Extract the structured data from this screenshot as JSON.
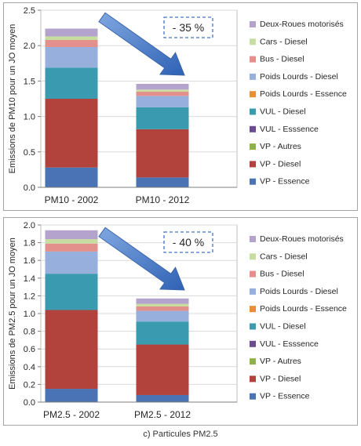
{
  "caption": "c) Particules PM2.5",
  "colors": {
    "VP - Essence": "#4a73b6",
    "VP - Diesel": "#b1423c",
    "VP - Autres": "#8fb04e",
    "VUL - Esssence": "#6c4b92",
    "VUL - Diesel": "#3a9bb0",
    "Poids Lourds - Essence": "#e88e35",
    "Poids Lourds - Diesel": "#97afdc",
    "Bus - Diesel": "#e38f8c",
    "Cars - Diesel": "#c7dc9f",
    "Deux-Roues motorisés": "#b3a3cd"
  },
  "chart_data": [
    {
      "type": "bar",
      "stacked": true,
      "ylabel": "Emissions de PM10 pour un JO moyen",
      "ylim": [
        0,
        2.5
      ],
      "yticks": [
        0,
        0.5,
        1,
        1.5,
        2,
        2.5
      ],
      "ytick_labels": [
        "0.0",
        "0.5",
        "1.0",
        "1.5",
        "2.0",
        "2.5"
      ],
      "grid": true,
      "legend_position": "right",
      "categories": [
        "PM10 - 2002",
        "PM10 - 2012"
      ],
      "annotation": "- 35 %",
      "series": [
        {
          "name": "VP - Essence",
          "values": [
            0.28,
            0.14
          ]
        },
        {
          "name": "VP - Diesel",
          "values": [
            0.97,
            0.68
          ]
        },
        {
          "name": "VP - Autres",
          "values": [
            0.0,
            0.0
          ]
        },
        {
          "name": "VUL - Esssence",
          "values": [
            0.0,
            0.0
          ]
        },
        {
          "name": "VUL - Diesel",
          "values": [
            0.44,
            0.31
          ]
        },
        {
          "name": "Poids Lourds - Essence",
          "values": [
            0.0,
            0.0
          ]
        },
        {
          "name": "Poids Lourds - Diesel",
          "values": [
            0.29,
            0.16
          ]
        },
        {
          "name": "Bus - Diesel",
          "values": [
            0.1,
            0.06
          ]
        },
        {
          "name": "Cars - Diesel",
          "values": [
            0.05,
            0.03
          ]
        },
        {
          "name": "Deux-Roues motorisés",
          "values": [
            0.11,
            0.08
          ]
        }
      ]
    },
    {
      "type": "bar",
      "stacked": true,
      "ylabel": "Emissions de PM2.5 pour un JO moyen",
      "ylim": [
        0,
        2.0
      ],
      "yticks": [
        0,
        0.2,
        0.4,
        0.6,
        0.8,
        1.0,
        1.2,
        1.4,
        1.6,
        1.8,
        2.0
      ],
      "ytick_labels": [
        "0.0",
        "0.2",
        "0.4",
        "0.6",
        "0.8",
        "1.0",
        "1.2",
        "1.4",
        "1.6",
        "1.8",
        "2.0"
      ],
      "grid": true,
      "legend_position": "right",
      "categories": [
        "PM2.5 - 2002",
        "PM2.5 - 2012"
      ],
      "annotation": "- 40 %",
      "series": [
        {
          "name": "VP - Essence",
          "values": [
            0.15,
            0.08
          ]
        },
        {
          "name": "VP - Diesel",
          "values": [
            0.89,
            0.57
          ]
        },
        {
          "name": "VP - Autres",
          "values": [
            0.0,
            0.0
          ]
        },
        {
          "name": "VUL - Esssence",
          "values": [
            0.0,
            0.0
          ]
        },
        {
          "name": "VUL - Diesel",
          "values": [
            0.41,
            0.26
          ]
        },
        {
          "name": "Poids Lourds - Essence",
          "values": [
            0.0,
            0.0
          ]
        },
        {
          "name": "Poids Lourds - Diesel",
          "values": [
            0.25,
            0.12
          ]
        },
        {
          "name": "Bus - Diesel",
          "values": [
            0.09,
            0.05
          ]
        },
        {
          "name": "Cars - Diesel",
          "values": [
            0.05,
            0.03
          ]
        },
        {
          "name": "Deux-Roues motorisés",
          "values": [
            0.1,
            0.06
          ]
        }
      ]
    }
  ]
}
